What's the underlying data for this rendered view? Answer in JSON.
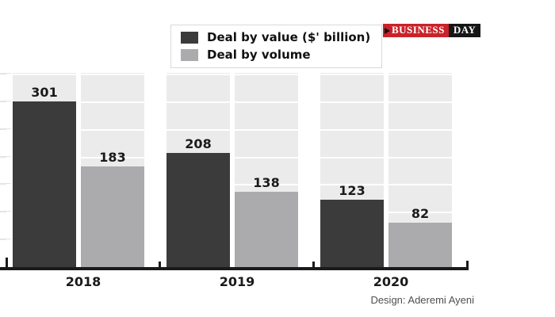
{
  "legend": {
    "items": [
      {
        "label": "Deal by value ($' billion)",
        "color": "#3b3b3c"
      },
      {
        "label": "Deal by volume",
        "color": "#ababad"
      }
    ]
  },
  "logo": {
    "left_text": "BUSINESS",
    "right_text": "DAY",
    "red": "#c9222a",
    "black": "#161616"
  },
  "credit": "Design: Aderemi Ayeni",
  "chart_data": {
    "type": "bar",
    "categories": [
      "2018",
      "2019",
      "2020"
    ],
    "series": [
      {
        "name": "Deal by value ($' billion)",
        "color": "#3b3b3c",
        "values": [
          301,
          208,
          123
        ]
      },
      {
        "name": "Deal by volume",
        "color": "#ababad",
        "values": [
          183,
          138,
          82
        ]
      }
    ],
    "title": "",
    "xlabel": "",
    "ylabel": "",
    "ylim": [
      0,
      353
    ],
    "gridline_step": 50,
    "grid": true,
    "y_tick_labels_shown": false,
    "legend_position": "top-center",
    "column_background": "#ebebeb",
    "gridline_color": "#ffffff",
    "axis_color": "#1a1a1a"
  }
}
